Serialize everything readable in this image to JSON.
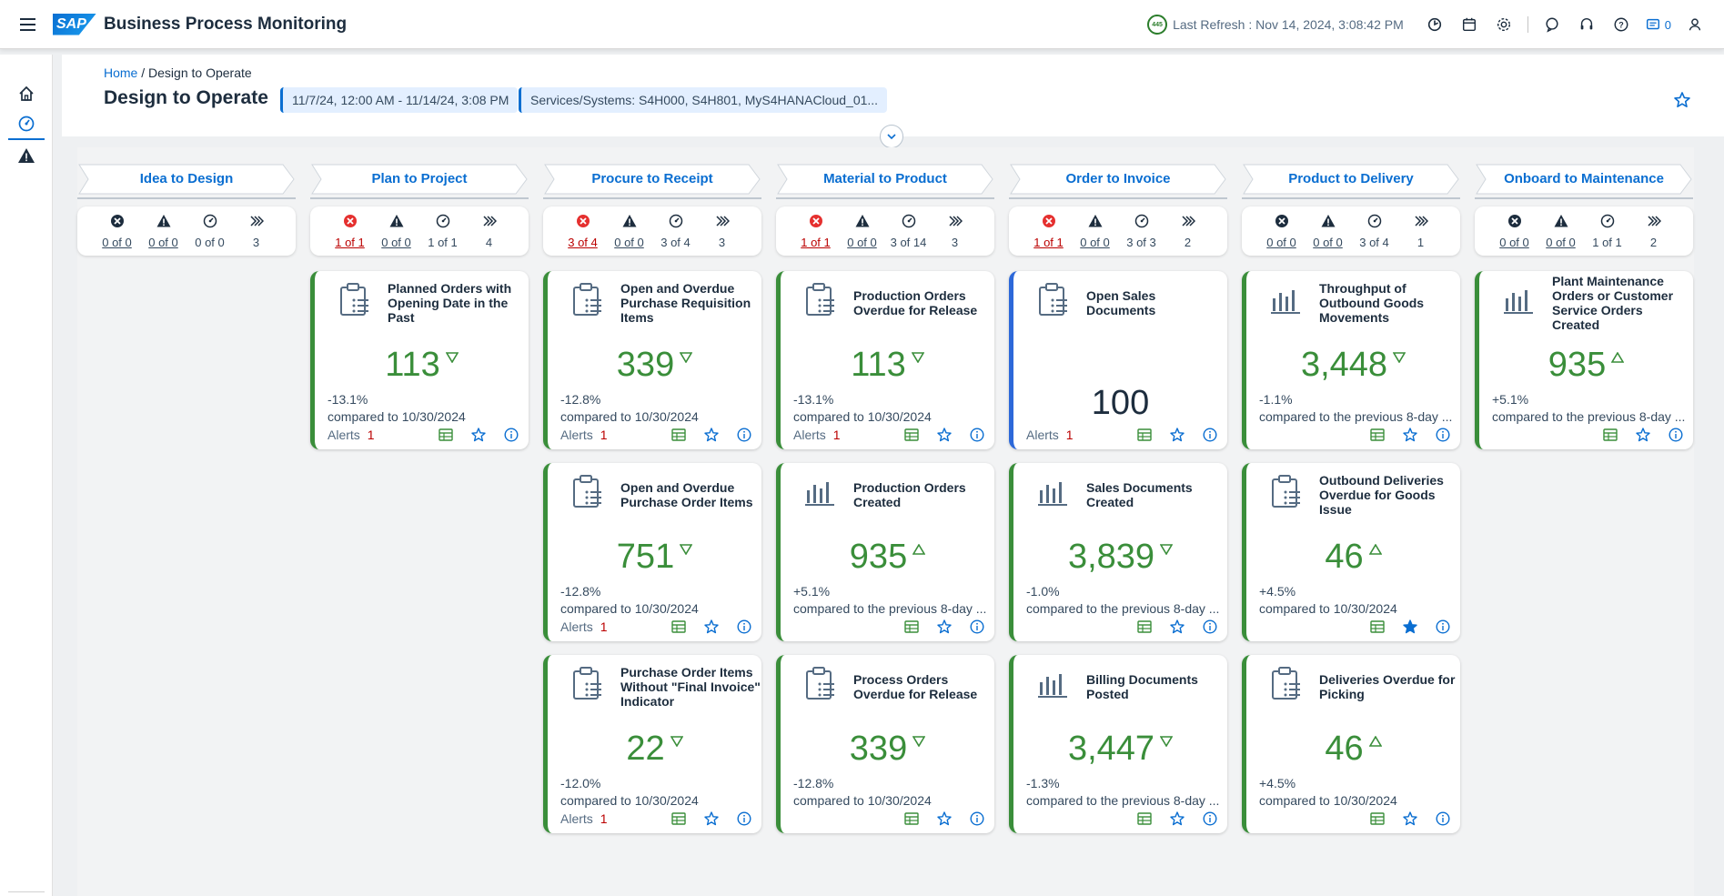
{
  "shell": {
    "logo": "SAP",
    "title": "Business Process Monitoring",
    "refresh_badge": "445",
    "last_refresh": "Last Refresh : Nov 14, 2024, 3:08:42 PM",
    "notification_count": "0"
  },
  "breadcrumb": {
    "home": "Home",
    "separator": "/",
    "current": "Design to Operate"
  },
  "page": {
    "title": "Design to Operate",
    "date_chip": "11/7/24, 12:00 AM - 11/14/24, 3:08 PM",
    "systems_chip": "Services/Systems: S4H000, S4H801, MyS4HANACloud_01..."
  },
  "colors": {
    "accent": "#0a6ed1",
    "positive": "#3a8e3a",
    "negative": "#bb0000",
    "neutral_border": "#2c68d9"
  },
  "phases": [
    {
      "label": "Idea to Design",
      "status": [
        {
          "icon": "error-icon",
          "value": "0 of 0",
          "style": "link"
        },
        {
          "icon": "warning-icon",
          "value": "0 of 0",
          "style": "link"
        },
        {
          "icon": "monitor-icon",
          "value": "0 of 0",
          "style": "plain"
        },
        {
          "icon": "forward-icon",
          "value": "3",
          "style": "plain"
        }
      ]
    },
    {
      "label": "Plan to Project",
      "status": [
        {
          "icon": "error-icon",
          "value": "1 of 1",
          "style": "red"
        },
        {
          "icon": "warning-icon",
          "value": "0 of 0",
          "style": "link"
        },
        {
          "icon": "monitor-icon",
          "value": "1 of 1",
          "style": "plain"
        },
        {
          "icon": "forward-icon",
          "value": "4",
          "style": "plain"
        }
      ]
    },
    {
      "label": "Procure to Receipt",
      "status": [
        {
          "icon": "error-icon",
          "value": "3 of 4",
          "style": "red"
        },
        {
          "icon": "warning-icon",
          "value": "0 of 0",
          "style": "link"
        },
        {
          "icon": "monitor-icon",
          "value": "3 of 4",
          "style": "plain"
        },
        {
          "icon": "forward-icon",
          "value": "3",
          "style": "plain"
        }
      ]
    },
    {
      "label": "Material to Product",
      "status": [
        {
          "icon": "error-icon",
          "value": "1 of 1",
          "style": "red"
        },
        {
          "icon": "warning-icon",
          "value": "0 of 0",
          "style": "link"
        },
        {
          "icon": "monitor-icon",
          "value": "3 of 14",
          "style": "plain"
        },
        {
          "icon": "forward-icon",
          "value": "3",
          "style": "plain"
        }
      ]
    },
    {
      "label": "Order to Invoice",
      "status": [
        {
          "icon": "error-icon",
          "value": "1 of 1",
          "style": "red"
        },
        {
          "icon": "warning-icon",
          "value": "0 of 0",
          "style": "link"
        },
        {
          "icon": "monitor-icon",
          "value": "3 of 3",
          "style": "plain"
        },
        {
          "icon": "forward-icon",
          "value": "2",
          "style": "plain"
        }
      ]
    },
    {
      "label": "Product to Delivery",
      "status": [
        {
          "icon": "error-icon",
          "value": "0 of 0",
          "style": "link"
        },
        {
          "icon": "warning-icon",
          "value": "0 of 0",
          "style": "link"
        },
        {
          "icon": "monitor-icon",
          "value": "3 of 4",
          "style": "plain"
        },
        {
          "icon": "forward-icon",
          "value": "1",
          "style": "plain"
        }
      ]
    },
    {
      "label": "Onboard to Maintenance",
      "status": [
        {
          "icon": "error-icon",
          "value": "0 of 0",
          "style": "link"
        },
        {
          "icon": "warning-icon",
          "value": "0 of 0",
          "style": "link"
        },
        {
          "icon": "monitor-icon",
          "value": "1 of 1",
          "style": "plain"
        },
        {
          "icon": "forward-icon",
          "value": "2",
          "style": "plain"
        }
      ]
    }
  ],
  "tiles": [
    {
      "col": 1,
      "row": 0,
      "icon": "clipboard-icon",
      "title": "Planned Orders with Opening Date in the Past",
      "kpi": "113",
      "trend": "down",
      "delta": "-13.1%",
      "compare": "compared to 10/30/2024",
      "alerts_label": "Alerts",
      "alerts": "1",
      "fav": false,
      "border": "green"
    },
    {
      "col": 2,
      "row": 0,
      "icon": "clipboard-icon",
      "title": "Open and Overdue Purchase Requisition Items",
      "kpi": "339",
      "trend": "down",
      "delta": "-12.8%",
      "compare": "compared to 10/30/2024",
      "alerts_label": "Alerts",
      "alerts": "1",
      "fav": false,
      "border": "green"
    },
    {
      "col": 2,
      "row": 1,
      "icon": "clipboard-icon",
      "title": "Open and Overdue Purchase Order Items",
      "kpi": "751",
      "trend": "down",
      "delta": "-12.8%",
      "compare": "compared to 10/30/2024",
      "alerts_label": "Alerts",
      "alerts": "1",
      "fav": false,
      "border": "green"
    },
    {
      "col": 2,
      "row": 2,
      "icon": "clipboard-icon",
      "title": "Purchase Order Items Without \"Final Invoice\" Indicator",
      "kpi": "22",
      "trend": "down",
      "delta": "-12.0%",
      "compare": "compared to 10/30/2024",
      "alerts_label": "Alerts",
      "alerts": "1",
      "fav": false,
      "border": "green"
    },
    {
      "col": 3,
      "row": 0,
      "icon": "clipboard-icon",
      "title": "Production Orders Overdue for Release",
      "kpi": "113",
      "trend": "down",
      "delta": "-13.1%",
      "compare": "compared to 10/30/2024",
      "alerts_label": "Alerts",
      "alerts": "1",
      "fav": false,
      "border": "green"
    },
    {
      "col": 3,
      "row": 1,
      "icon": "bar-chart-icon",
      "title": "Production Orders Created",
      "kpi": "935",
      "trend": "up",
      "delta": "+5.1%",
      "compare": "compared to the previous 8-day ...",
      "alerts_label": "",
      "alerts": "",
      "fav": false,
      "border": "green"
    },
    {
      "col": 3,
      "row": 2,
      "icon": "clipboard-icon",
      "title": "Process Orders Overdue for Release",
      "kpi": "339",
      "trend": "down",
      "delta": "-12.8%",
      "compare": "compared to 10/30/2024",
      "alerts_label": "",
      "alerts": "",
      "fav": false,
      "border": "green"
    },
    {
      "col": 4,
      "row": 0,
      "icon": "clipboard-icon",
      "title": "Open Sales Documents",
      "kpi": "100",
      "trend": "",
      "delta": "",
      "compare": "",
      "alerts_label": "Alerts",
      "alerts": "1",
      "fav": false,
      "border": "blue"
    },
    {
      "col": 4,
      "row": 1,
      "icon": "bar-chart-icon",
      "title": "Sales Documents Created",
      "kpi": "3,839",
      "trend": "down",
      "delta": "-1.0%",
      "compare": "compared to the previous 8-day ...",
      "alerts_label": "",
      "alerts": "",
      "fav": false,
      "border": "green"
    },
    {
      "col": 4,
      "row": 2,
      "icon": "bar-chart-icon",
      "title": "Billing Documents Posted",
      "kpi": "3,447",
      "trend": "down",
      "delta": "-1.3%",
      "compare": "compared to the previous 8-day ...",
      "alerts_label": "",
      "alerts": "",
      "fav": false,
      "border": "green"
    },
    {
      "col": 5,
      "row": 0,
      "icon": "bar-chart-icon",
      "title": "Throughput of Outbound Goods Movements",
      "kpi": "3,448",
      "trend": "down",
      "delta": "-1.1%",
      "compare": "compared to the previous 8-day ...",
      "alerts_label": "",
      "alerts": "",
      "fav": false,
      "border": "green"
    },
    {
      "col": 5,
      "row": 1,
      "icon": "clipboard-icon",
      "title": "Outbound Deliveries Overdue for Goods Issue",
      "kpi": "46",
      "trend": "up",
      "delta": "+4.5%",
      "compare": "compared to 10/30/2024",
      "alerts_label": "",
      "alerts": "",
      "fav": true,
      "border": "green"
    },
    {
      "col": 5,
      "row": 2,
      "icon": "clipboard-icon",
      "title": "Deliveries Overdue for Picking",
      "kpi": "46",
      "trend": "up",
      "delta": "+4.5%",
      "compare": "compared to 10/30/2024",
      "alerts_label": "",
      "alerts": "",
      "fav": false,
      "border": "green"
    },
    {
      "col": 6,
      "row": 0,
      "icon": "bar-chart-icon",
      "title": "Plant Maintenance Orders or Customer Service Orders Created",
      "kpi": "935",
      "trend": "up",
      "delta": "+5.1%",
      "compare": "compared to the previous 8-day ...",
      "alerts_label": "",
      "alerts": "",
      "fav": false,
      "border": "green"
    }
  ]
}
